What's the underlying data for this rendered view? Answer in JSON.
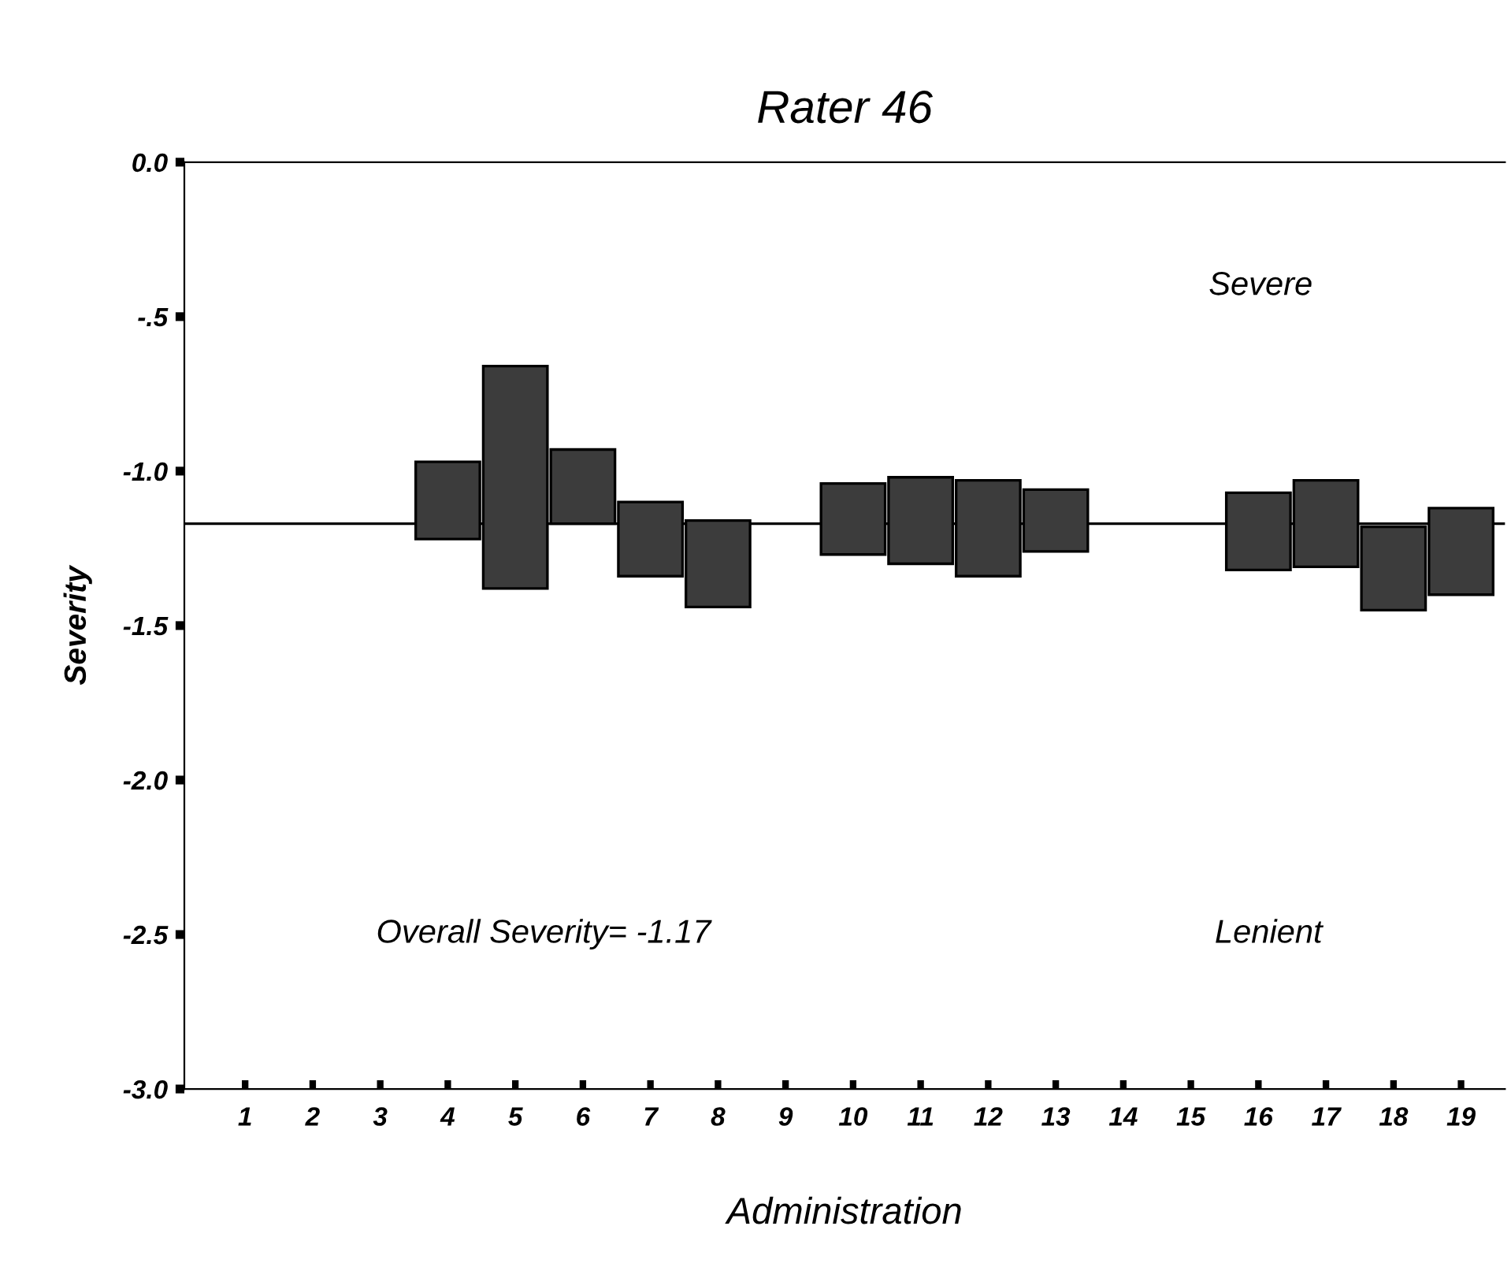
{
  "chart_data": {
    "type": "bar",
    "title": "Rater 46",
    "xlabel": "Administration",
    "ylabel": "Severity",
    "categories": [
      "1",
      "2",
      "3",
      "4",
      "5",
      "6",
      "7",
      "8",
      "9",
      "10",
      "11",
      "12",
      "13",
      "14",
      "15",
      "16",
      "17",
      "18",
      "19"
    ],
    "base": [
      null,
      null,
      null,
      -1.22,
      -1.38,
      -1.17,
      -1.34,
      -1.44,
      null,
      -1.27,
      -1.3,
      -1.34,
      -1.26,
      null,
      null,
      -1.32,
      -1.31,
      -1.45,
      -1.4
    ],
    "values": [
      null,
      null,
      null,
      0.25,
      0.72,
      0.24,
      0.24,
      0.28,
      null,
      0.23,
      0.28,
      0.31,
      0.2,
      null,
      null,
      0.25,
      0.28,
      0.27,
      0.28
    ],
    "color": "#3c3c3c",
    "ylim": [
      -3.0,
      0.0
    ],
    "yticks": [
      {
        "value": 0.0,
        "label": "0.0"
      },
      {
        "value": -0.5,
        "label": "-.5"
      },
      {
        "value": -1.0,
        "label": "-1.0"
      },
      {
        "value": -1.5,
        "label": "-1.5"
      },
      {
        "value": -2.0,
        "label": "-2.0"
      },
      {
        "value": -2.5,
        "label": "-2.5"
      },
      {
        "value": -3.0,
        "label": "-3.0"
      }
    ],
    "ref_lines": [
      {
        "axis": "y",
        "value": -1.17,
        "color": "#000000"
      }
    ],
    "annotations": [
      "Severe",
      "Lenient",
      "Overall Severity= -1.17"
    ],
    "grid": false,
    "legend": false
  }
}
